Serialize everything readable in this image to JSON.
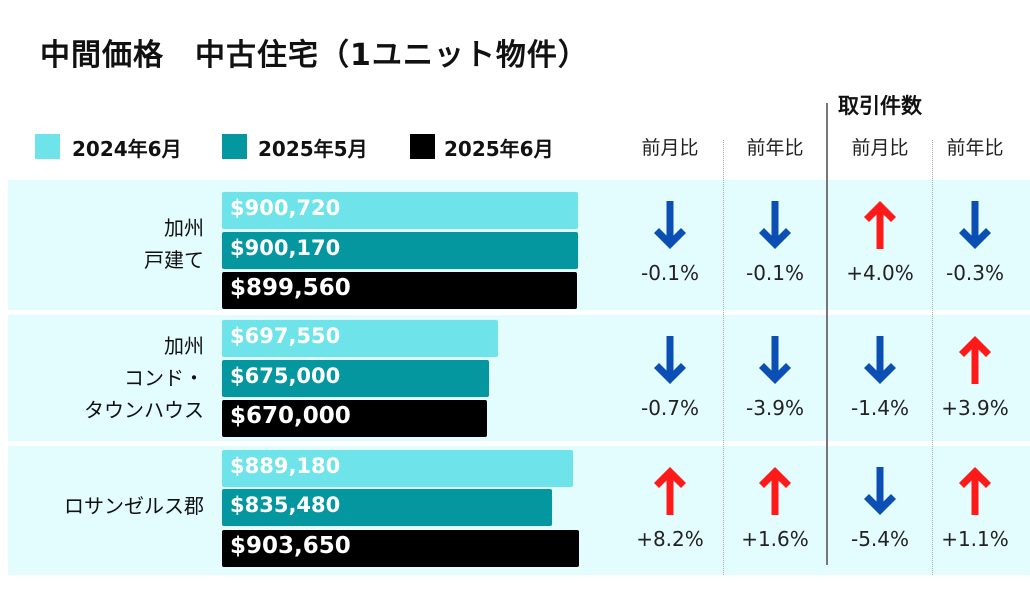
{
  "title": "中間価格　中古住宅（1ユニット物件）",
  "transactions_header": "取引件数",
  "column_headers": [
    "前月比",
    "前年比",
    "前月比",
    "前年比"
  ],
  "colors": {
    "2024-06": "#6ee3e9",
    "2025-05": "#05979f",
    "2025-06": "#000000",
    "down": "#0b4fb5",
    "up": "#ff1a1a",
    "row_bg": "#e3fcfd"
  },
  "chart_data": {
    "type": "bar",
    "orientation": "horizontal",
    "title": "中間価格　中古住宅（1ユニット物件）",
    "legend": [
      "2024年6月",
      "2025年5月",
      "2025年6月"
    ],
    "legend_placement": "top-left",
    "categories": [
      "加州\n戸建て",
      "加州\nコンド・\nタウンハウス",
      "ロサンゼルス郡"
    ],
    "series": [
      {
        "name": "2024年6月",
        "values": [
          900720,
          697550,
          889180
        ],
        "labels": [
          "$900,720",
          "$697,550",
          "$889,180"
        ]
      },
      {
        "name": "2025年5月",
        "values": [
          900170,
          675000,
          835480
        ],
        "labels": [
          "$900,170",
          "$675,000",
          "$835,480"
        ]
      },
      {
        "name": "2025年6月",
        "values": [
          899560,
          670000,
          903650
        ],
        "labels": [
          "$899,560",
          "$670,000",
          "$903,650"
        ]
      }
    ],
    "xlim": [
      0,
      903650
    ],
    "changes": [
      {
        "price_mom": "-0.1%",
        "price_yoy": "-0.1%",
        "sales_mom": "+4.0%",
        "sales_yoy": "-0.3%"
      },
      {
        "price_mom": "-0.7%",
        "price_yoy": "-3.9%",
        "sales_mom": "-1.4%",
        "sales_yoy": "+3.9%"
      },
      {
        "price_mom": "+8.2%",
        "price_yoy": "+1.6%",
        "sales_mom": "-5.4%",
        "sales_yoy": "+1.1%"
      }
    ]
  }
}
